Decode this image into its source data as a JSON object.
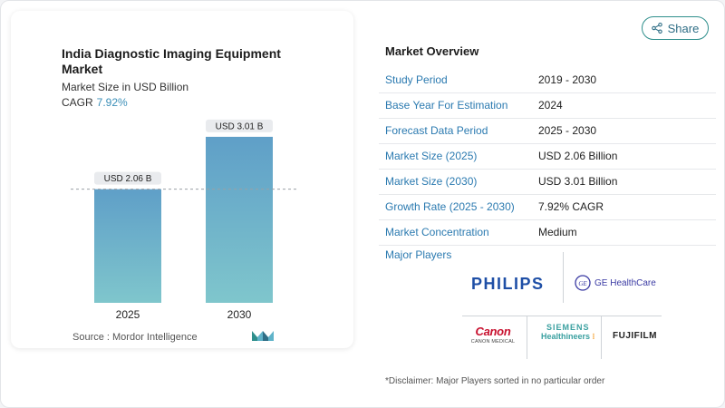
{
  "chart": {
    "title": "India Diagnostic Imaging Equipment Market",
    "subtitle": "Market Size in USD Billion",
    "cagr_label": "CAGR",
    "cagr_value": "7.92%",
    "source": "Source :  Mordor Intelligence"
  },
  "chart_data": {
    "type": "bar",
    "categories": [
      "2025",
      "2030"
    ],
    "values": [
      2.06,
      3.01
    ],
    "data_labels": [
      "USD 2.06 B",
      "USD 3.01 B"
    ],
    "ylim": [
      0,
      3.6
    ],
    "grid": false,
    "reference_line": 2.06,
    "colors": {
      "bar_top": "#5f9fc8",
      "bar_bottom": "#7fc6cc",
      "label_bg": "#e9ebee"
    }
  },
  "share": {
    "label": "Share",
    "icon": "share-icon"
  },
  "overview": {
    "title": "Market Overview",
    "rows": [
      {
        "key": "Study Period",
        "value": "2019 - 2030"
      },
      {
        "key": "Base Year For Estimation",
        "value": "2024"
      },
      {
        "key": "Forecast Data Period",
        "value": "2025 - 2030"
      },
      {
        "key": "Market Size (2025)",
        "value": "USD 2.06 Billion"
      },
      {
        "key": "Market Size (2030)",
        "value": "USD 3.01 Billion"
      },
      {
        "key": "Growth Rate (2025 - 2030)",
        "value": "7.92% CAGR"
      },
      {
        "key": "Market Concentration",
        "value": "Medium"
      }
    ]
  },
  "players": {
    "label": "Major Players",
    "philips": "PHILIPS",
    "ge": "GE HealthCare",
    "canon_top": "Canon",
    "canon_bottom": "CANON MEDICAL",
    "siemens_top": "SIEMENS",
    "siemens_bottom": "Healthineers",
    "fujifilm": "FUJIFILM"
  },
  "disclaimer": "*Disclaimer: Major Players sorted in no particular order",
  "colors": {
    "accent": "#2b7ab0",
    "brand_teal": "#2f8f8c"
  }
}
